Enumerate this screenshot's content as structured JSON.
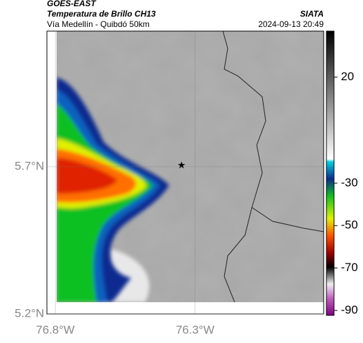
{
  "header": {
    "title": "GOES-EAST",
    "subtitle": "Temperatura de Brillo CH13",
    "region": "Vía Medellín - Quibdó 50km",
    "source": "SIATA",
    "timestamp": "2024-09-13 20:49"
  },
  "map": {
    "xlim": [
      -76.83,
      -75.84
    ],
    "ylim": [
      5.2,
      6.16
    ],
    "xticks": [
      {
        "value": -76.8,
        "label": "76.8°W"
      },
      {
        "value": -76.3,
        "label": "76.3°W"
      }
    ],
    "yticks": [
      {
        "value": 5.7,
        "label": "5.7°N"
      },
      {
        "value": 5.2,
        "label": "5.2°N"
      }
    ]
  },
  "colorbar": {
    "lim": [
      -92.3,
      41.7
    ],
    "ticks": [
      20,
      -30,
      -50,
      -70,
      -90
    ]
  }
}
